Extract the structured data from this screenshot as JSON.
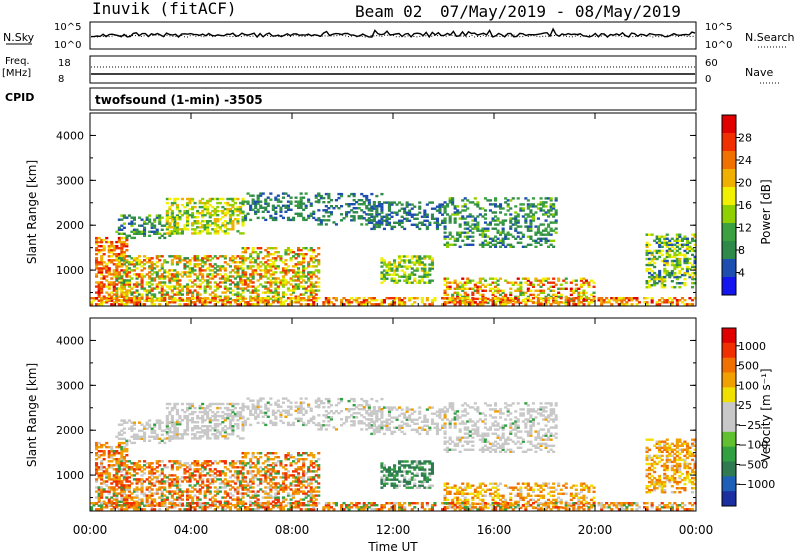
{
  "header": {
    "station": "Inuvik (fitACF)",
    "beam": "Beam 02",
    "date_range": "07/May/2019 - 08/May/2019"
  },
  "top_panels": {
    "nsky": {
      "label": "N.Sky",
      "tick_top": "10^5",
      "tick_bottom": "10^0",
      "right_label": "N.Search",
      "right_tick_top": "10^5",
      "right_tick_bottom": "10^0"
    },
    "freq": {
      "label_line1": "Freq.",
      "label_line2": "[MHz]",
      "tick_top": "18",
      "tick_bottom": "8",
      "right_label": "Nave",
      "right_tick_top": "60",
      "right_tick_bottom": "0"
    },
    "cpid_label": "CPID",
    "cpid_text": "twofsound (1-min) -3505"
  },
  "chart_data": [
    {
      "type": "heatmap",
      "name": "power",
      "ylabel": "Slant Range [km]",
      "y_ticks": [
        "1000",
        "2000",
        "3000",
        "4000"
      ],
      "ylim": [
        200,
        4500
      ],
      "xlim": [
        0,
        24
      ],
      "colorbar": {
        "label": "Power [dB]",
        "ticks": [
          "4",
          "8",
          "12",
          "16",
          "20",
          "24",
          "28"
        ],
        "colors": [
          "#1515f0",
          "#1e4fb0",
          "#2f8a4a",
          "#3aa040",
          "#90d000",
          "#f0f000",
          "#f0b000",
          "#f07000",
          "#f03000",
          "#e00000"
        ]
      }
    },
    {
      "type": "heatmap",
      "name": "velocity",
      "ylabel": "Slant Range [km]",
      "y_ticks": [
        "1000",
        "2000",
        "3000",
        "4000"
      ],
      "ylim": [
        200,
        4500
      ],
      "xlim": [
        0,
        24
      ],
      "xlabel": "Time UT",
      "x_ticks": [
        "00:00",
        "04:00",
        "08:00",
        "12:00",
        "16:00",
        "20:00",
        "00:00"
      ],
      "colorbar": {
        "label": "Velocity [m s⁻¹]",
        "ticks": [
          "1000",
          "500",
          "100",
          "25",
          "−25",
          "−100",
          "−500",
          "−1000"
        ],
        "colors": [
          "#1c2fa0",
          "#1e60b8",
          "#2f7a50",
          "#30a040",
          "#60c030",
          "#c8c8c8",
          "#c8c8c8",
          "#f0e000",
          "#f0a000",
          "#f07000",
          "#f03000",
          "#e00000"
        ]
      }
    }
  ]
}
